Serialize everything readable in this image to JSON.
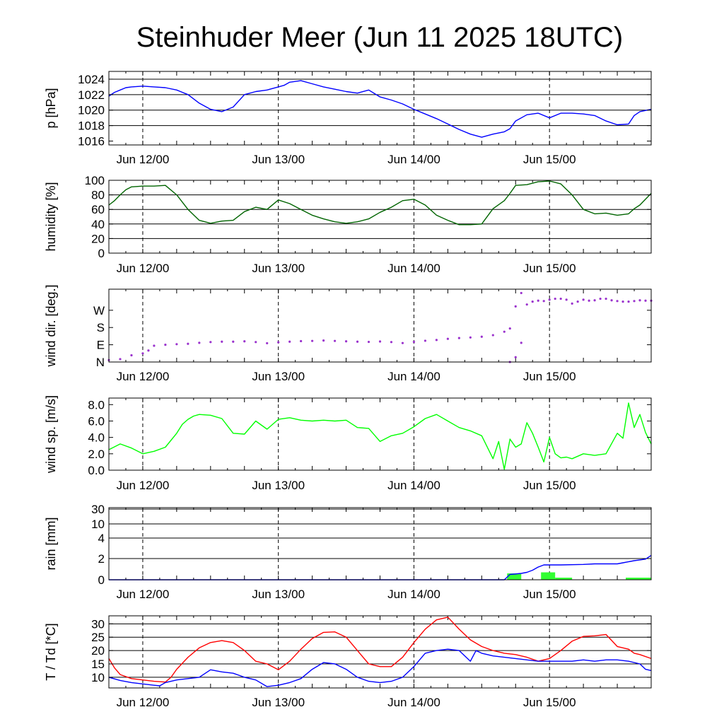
{
  "chart_data": {
    "title": "Steinhuder Meer (Jun 11 2025 18UTC)",
    "x_tick_labels": [
      "Jun 12/00",
      "Jun 13/00",
      "Jun 14/00",
      "Jun 15/00"
    ],
    "x_range_hours": [
      0,
      96
    ],
    "panels": [
      {
        "id": "pressure",
        "type": "line",
        "ylabel": "p [hPa]",
        "ylim": [
          1015.5,
          1025
        ],
        "yticks": [
          1016,
          1018,
          1020,
          1022,
          1024
        ],
        "gridlines": [
          1018,
          1020,
          1022,
          1024
        ],
        "color": "#0000ff",
        "series": [
          {
            "x": [
              0,
              1,
              2,
              3,
              4,
              6,
              8,
              10,
              12,
              14,
              16,
              18,
              20,
              22,
              24,
              26,
              28,
              30,
              31,
              32,
              34,
              36,
              38,
              40,
              42,
              44,
              46,
              48,
              50,
              52,
              54,
              56,
              58,
              60,
              62,
              64,
              66,
              68,
              70,
              71,
              72,
              74,
              76,
              78,
              80,
              82,
              84,
              86,
              88,
              90,
              92,
              93,
              94,
              96
            ],
            "y": [
              1021.8,
              1022.3,
              1022.6,
              1022.9,
              1023.0,
              1023.1,
              1023.0,
              1022.9,
              1022.6,
              1022.0,
              1020.9,
              1020.1,
              1019.8,
              1020.4,
              1022.0,
              1022.4,
              1022.6,
              1023.0,
              1023.2,
              1023.6,
              1023.8,
              1023.4,
              1023.0,
              1022.7,
              1022.4,
              1022.2,
              1022.6,
              1021.7,
              1021.3,
              1020.8,
              1020.1,
              1019.5,
              1018.9,
              1018.2,
              1017.5,
              1016.9,
              1016.5,
              1016.9,
              1017.2,
              1017.6,
              1018.6,
              1019.4,
              1019.6,
              1019.0,
              1019.6,
              1019.6,
              1019.5,
              1019.3,
              1018.6,
              1018.1,
              1018.2,
              1019.3,
              1019.8,
              1020.1
            ]
          }
        ]
      },
      {
        "id": "humidity",
        "type": "line",
        "ylabel": "humidity [%]",
        "ylim": [
          0,
          100
        ],
        "yticks": [
          0,
          20,
          40,
          60,
          80,
          100
        ],
        "gridlines": [
          20,
          40,
          60,
          80,
          100
        ],
        "color": "#006400",
        "series": [
          {
            "x": [
              0,
              1,
              2,
              3,
              4,
              6,
              8,
              10,
              12,
              14,
              16,
              18,
              20,
              22,
              24,
              26,
              28,
              30,
              32,
              34,
              36,
              38,
              40,
              42,
              44,
              46,
              48,
              50,
              52,
              54,
              56,
              58,
              60,
              62,
              64,
              66,
              68,
              70,
              71,
              72,
              74,
              76,
              78,
              80,
              82,
              84,
              86,
              88,
              90,
              92,
              93,
              94,
              96
            ],
            "y": [
              66,
              72,
              80,
              87,
              91,
              92,
              92,
              93,
              80,
              60,
              45,
              41,
              44,
              45,
              57,
              63,
              60,
              73,
              68,
              60,
              52,
              47,
              43,
              41,
              43,
              47,
              56,
              63,
              72,
              74,
              66,
              52,
              45,
              39,
              39,
              40,
              61,
              72,
              82,
              93,
              94,
              98,
              99,
              95,
              80,
              60,
              54,
              55,
              52,
              54,
              61,
              66,
              82
            ]
          }
        ]
      },
      {
        "id": "wind_direction",
        "type": "scatter",
        "ylabel": "wind dir. [deg.]",
        "ylim": [
          0,
          380
        ],
        "yticks": [
          0,
          90,
          180,
          270
        ],
        "ytick_labels": [
          "N",
          "E",
          "S",
          "W"
        ],
        "color": "#9a32cd",
        "series": [
          {
            "x": [
              0,
              2,
              4,
              6,
              7,
              8,
              10,
              12,
              14,
              16,
              18,
              20,
              22,
              24,
              26,
              28,
              30,
              32,
              34,
              36,
              38,
              40,
              42,
              44,
              46,
              48,
              50,
              52,
              54,
              56,
              58,
              60,
              62,
              64,
              66,
              68,
              70,
              71,
              72,
              73
            ],
            "y": [
              10,
              15,
              35,
              45,
              60,
              85,
              90,
              93,
              95,
              100,
              104,
              106,
              106,
              108,
              104,
              98,
              103,
              106,
              109,
              110,
              112,
              110,
              108,
              106,
              105,
              107,
              104,
              99,
              105,
              111,
              115,
              121,
              125,
              128,
              132,
              140,
              158,
              175,
              290,
              360
            ]
          },
          {
            "x": [
              71,
              72,
              73,
              74,
              75,
              76,
              77,
              78,
              79,
              80,
              81,
              82,
              83,
              84,
              85,
              86,
              87,
              88,
              89,
              90,
              91,
              92,
              93,
              94,
              95,
              96
            ],
            "y": [
              0,
              25,
              100,
              300,
              315,
              320,
              318,
              325,
              330,
              330,
              325,
              305,
              315,
              325,
              320,
              322,
              330,
              330,
              322,
              318,
              315,
              315,
              318,
              322,
              320,
              320
            ]
          }
        ]
      },
      {
        "id": "wind_speed",
        "type": "line",
        "ylabel": "wind sp. [m/s]",
        "ylim": [
          0,
          8.8
        ],
        "yticks": [
          0.0,
          2.0,
          4.0,
          6.0,
          8.0
        ],
        "color": "#00ff00",
        "series": [
          {
            "x": [
              0,
              2,
              4,
              6,
              8,
              10,
              12,
              13,
              14,
              15,
              16,
              18,
              20,
              22,
              24,
              26,
              28,
              30,
              32,
              34,
              36,
              38,
              40,
              42,
              44,
              46,
              48,
              50,
              52,
              54,
              56,
              58,
              60,
              62,
              64,
              66,
              68,
              69,
              70,
              71,
              72,
              73,
              74,
              75,
              76,
              77,
              78,
              79,
              80,
              81,
              82,
              84,
              86,
              88,
              90,
              91,
              92,
              93,
              94,
              95,
              96
            ],
            "y": [
              2.5,
              3.2,
              2.7,
              2.0,
              2.3,
              2.8,
              4.5,
              5.6,
              6.2,
              6.6,
              6.8,
              6.7,
              6.3,
              4.5,
              4.4,
              6.0,
              5.0,
              6.2,
              6.4,
              6.1,
              6.0,
              6.1,
              6.0,
              6.1,
              5.2,
              5.1,
              3.5,
              4.2,
              4.5,
              5.3,
              6.3,
              6.8,
              6.0,
              5.2,
              4.8,
              4.2,
              1.4,
              3.5,
              0.1,
              3.8,
              2.8,
              3.2,
              5.8,
              4.5,
              2.8,
              1.0,
              4.0,
              2.0,
              1.5,
              1.6,
              1.4,
              2.0,
              1.8,
              2.0,
              4.5,
              3.9,
              8.2,
              5.2,
              6.8,
              4.6,
              3.2
            ]
          }
        ]
      },
      {
        "id": "rain",
        "type": "bar+line",
        "ylabel": "rain [mm]",
        "yticks": [
          0,
          2,
          4,
          10,
          30
        ],
        "gridlines": [
          2,
          4,
          10,
          30
        ],
        "line_color": "#0000ff",
        "bar_color": "#33ff33",
        "bars": [
          {
            "x0": 70.5,
            "x1": 73.0,
            "value": 0.6
          },
          {
            "x0": 76.5,
            "x1": 79.0,
            "value": 0.7
          },
          {
            "x0": 79.0,
            "x1": 82.0,
            "value": 0.2
          },
          {
            "x0": 91.5,
            "x1": 96.0,
            "value": 0.2
          }
        ],
        "series": [
          {
            "x": [
              0,
              70,
              71,
              73,
              74,
              75,
              76,
              77,
              78,
              80,
              84,
              86,
              88,
              90,
              91,
              93,
              95,
              96
            ],
            "y": [
              0,
              0,
              0.5,
              0.6,
              0.7,
              0.9,
              1.2,
              1.4,
              1.4,
              1.4,
              1.45,
              1.5,
              1.5,
              1.5,
              1.6,
              1.8,
              1.95,
              2.3
            ]
          }
        ]
      },
      {
        "id": "temperature",
        "type": "line",
        "ylabel": "T / Td [*C]",
        "ylim": [
          6,
          33
        ],
        "yticks": [
          10,
          15,
          20,
          25,
          30
        ],
        "gridlines": [
          10,
          15,
          20,
          25,
          30
        ],
        "series": [
          {
            "name": "T",
            "color": "#ff0000",
            "x": [
              0,
              1,
              2,
              4,
              6,
              8,
              10,
              11,
              12,
              14,
              16,
              18,
              20,
              22,
              24,
              26,
              28,
              30,
              32,
              34,
              36,
              38,
              40,
              42,
              44,
              46,
              48,
              50,
              52,
              54,
              56,
              58,
              60,
              62,
              64,
              66,
              68,
              70,
              72,
              74,
              76,
              78,
              80,
              82,
              84,
              86,
              88,
              90,
              92,
              93,
              94,
              96
            ],
            "y": [
              17,
              13.5,
              11,
              9.5,
              9,
              8.5,
              8.2,
              10,
              13,
              17.5,
              21,
              23,
              23.7,
              23,
              20,
              16,
              15,
              12.8,
              16,
              20.5,
              24.5,
              26.8,
              27,
              25,
              20,
              15,
              14,
              14,
              17.5,
              23,
              28,
              31.5,
              32.5,
              28,
              24,
              21.5,
              20,
              19,
              18.5,
              17.5,
              16,
              17,
              20,
              23.5,
              25.3,
              25.5,
              26,
              21.5,
              20.5,
              19,
              18.5,
              17
            ]
          },
          {
            "name": "Td",
            "color": "#0000ff",
            "x": [
              0,
              2,
              4,
              6,
              8,
              9,
              10,
              12,
              14,
              16,
              18,
              20,
              22,
              24,
              26,
              28,
              30,
              32,
              34,
              36,
              38,
              40,
              42,
              44,
              46,
              48,
              50,
              52,
              54,
              56,
              58,
              60,
              62,
              64,
              65,
              66,
              68,
              70,
              72,
              74,
              76,
              78,
              80,
              82,
              84,
              86,
              88,
              90,
              92,
              94,
              95,
              96
            ],
            "y": [
              10,
              8.8,
              8,
              7.5,
              7,
              6.8,
              8,
              9,
              9.5,
              10,
              12.8,
              12,
              11.5,
              10,
              9,
              6.5,
              7,
              8,
              9.5,
              13,
              15.5,
              15,
              13,
              10,
              8.5,
              8,
              8.5,
              10,
              14,
              19,
              20,
              20.5,
              20,
              16,
              20,
              19,
              18,
              17.5,
              17,
              16.5,
              16,
              16,
              16,
              16,
              16.5,
              16,
              16.5,
              16.5,
              16,
              15,
              13,
              12.5
            ]
          }
        ]
      }
    ]
  }
}
